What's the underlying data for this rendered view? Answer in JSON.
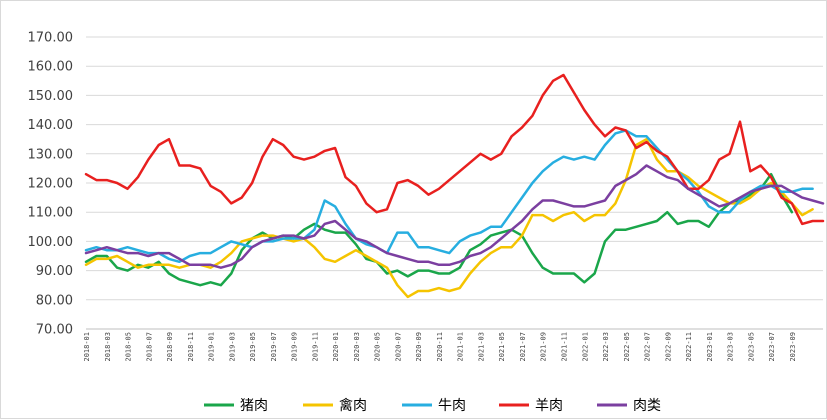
{
  "chart_data": {
    "type": "line",
    "title": "",
    "xlabel": "",
    "ylabel": "",
    "ylim": [
      70,
      170
    ],
    "grid": true,
    "legend_position": "bottom",
    "y_ticks": [
      "70.00",
      "80.00",
      "90.00",
      "100.00",
      "110.00",
      "120.00",
      "130.00",
      "140.00",
      "150.00",
      "160.00",
      "170.00"
    ],
    "x_tick_labels": [
      "2018-01",
      "2018-03",
      "2018-05",
      "2018-07",
      "2018-09",
      "2018-11",
      "2019-01",
      "2019-03",
      "2019-05",
      "2019-07",
      "2019-09",
      "2019-11",
      "2020-01",
      "2020-03",
      "2020-05",
      "2020-07",
      "2020-09",
      "2020-11",
      "2021-01",
      "2021-03",
      "2021-05",
      "2021-07",
      "2021-09",
      "2021-11",
      "2022-01",
      "2022-03",
      "2022-05",
      "2022-07",
      "2022-09",
      "2022-11",
      "2023-01",
      "2023-03",
      "2023-05",
      "2023-07",
      "2023-09"
    ],
    "series": [
      {
        "name": "猪肉",
        "color": "#1aa64a",
        "values": [
          93,
          95,
          95,
          91,
          90,
          92,
          91,
          93,
          89,
          87,
          86,
          85,
          86,
          85,
          89,
          97,
          101,
          103,
          101,
          102,
          101,
          104,
          106,
          104,
          103,
          103,
          99,
          94,
          93,
          89,
          90,
          88,
          90,
          90,
          89,
          89,
          91,
          97,
          99,
          102,
          103,
          104,
          102,
          96,
          91,
          89,
          89,
          89,
          86,
          89,
          100,
          104,
          104,
          105,
          106,
          107,
          110,
          106,
          107,
          107,
          105,
          110,
          113,
          114,
          116,
          118,
          123,
          116,
          110
        ]
      },
      {
        "name": "禽肉",
        "color": "#f5c400",
        "values": [
          92,
          94,
          94,
          95,
          93,
          91,
          92,
          92,
          92,
          91,
          92,
          92,
          91,
          93,
          96,
          100,
          101,
          102,
          102,
          101,
          100,
          101,
          98,
          94,
          93,
          95,
          97,
          95,
          93,
          91,
          85,
          81,
          83,
          83,
          84,
          83,
          84,
          89,
          93,
          96,
          98,
          98,
          102,
          109,
          109,
          107,
          109,
          110,
          107,
          109,
          109,
          113,
          121,
          133,
          135,
          128,
          124,
          124,
          122,
          119,
          117,
          115,
          113,
          113,
          115,
          118,
          120,
          117,
          113,
          109,
          111
        ]
      },
      {
        "name": "牛肉",
        "color": "#27aee0",
        "values": [
          97,
          98,
          97,
          97,
          98,
          97,
          96,
          96,
          94,
          93,
          95,
          96,
          96,
          98,
          100,
          99,
          98,
          100,
          100,
          101,
          101,
          101,
          104,
          114,
          112,
          106,
          101,
          99,
          98,
          96,
          103,
          103,
          98,
          98,
          97,
          96,
          100,
          102,
          103,
          105,
          105,
          110,
          115,
          120,
          124,
          127,
          129,
          128,
          129,
          128,
          133,
          137,
          138,
          136,
          136,
          132,
          128,
          124,
          121,
          117,
          112,
          110,
          110,
          114,
          117,
          119,
          119,
          117,
          117,
          118,
          118
        ]
      },
      {
        "name": "羊肉",
        "color": "#e8201f",
        "values": [
          123,
          121,
          121,
          120,
          118,
          122,
          128,
          133,
          135,
          126,
          126,
          125,
          119,
          117,
          113,
          115,
          120,
          129,
          135,
          133,
          129,
          128,
          129,
          131,
          132,
          122,
          119,
          113,
          110,
          111,
          120,
          121,
          119,
          116,
          118,
          121,
          124,
          127,
          130,
          128,
          130,
          136,
          139,
          143,
          150,
          155,
          157,
          151,
          145,
          140,
          136,
          139,
          138,
          132,
          134,
          131,
          129,
          124,
          118,
          118,
          121,
          128,
          130,
          141,
          124,
          126,
          122,
          115,
          113,
          106,
          107,
          107
        ]
      },
      {
        "name": "肉类",
        "color": "#7b3fa0",
        "values": [
          96,
          97,
          98,
          97,
          96,
          96,
          95,
          96,
          96,
          94,
          92,
          92,
          92,
          91,
          92,
          94,
          98,
          100,
          101,
          102,
          102,
          101,
          102,
          106,
          107,
          104,
          101,
          100,
          98,
          96,
          95,
          94,
          93,
          93,
          92,
          92,
          93,
          95,
          96,
          98,
          101,
          104,
          107,
          111,
          114,
          114,
          113,
          112,
          112,
          113,
          114,
          119,
          121,
          123,
          126,
          124,
          122,
          121,
          118,
          116,
          114,
          112,
          113,
          115,
          117,
          118,
          119,
          119,
          117,
          115,
          114,
          113
        ]
      }
    ]
  }
}
